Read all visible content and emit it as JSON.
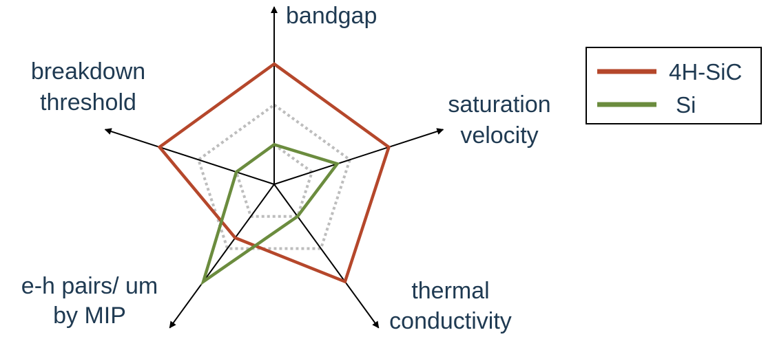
{
  "chart_data": {
    "type": "radar",
    "axes": [
      {
        "lines": [
          "bandgap"
        ]
      },
      {
        "lines": [
          "saturation",
          "velocity"
        ]
      },
      {
        "lines": [
          "thermal",
          "conductivity"
        ]
      },
      {
        "lines": [
          "e-h pairs/ um",
          "by MIP"
        ]
      },
      {
        "lines": [
          "breakdown",
          "threshold"
        ]
      }
    ],
    "grid_levels": [
      0.33,
      0.66
    ],
    "series": [
      {
        "name": "4H-SiC",
        "color": "#b5472b",
        "values": [
          1.0,
          1.0,
          1.0,
          0.55,
          1.0
        ]
      },
      {
        "name": "Si",
        "color": "#6b8c3e",
        "values": [
          0.33,
          0.55,
          0.33,
          1.0,
          0.33
        ]
      }
    ],
    "grid_color": "#bdbdbd",
    "axis_color": "#000000",
    "legend_position": "top-right"
  }
}
